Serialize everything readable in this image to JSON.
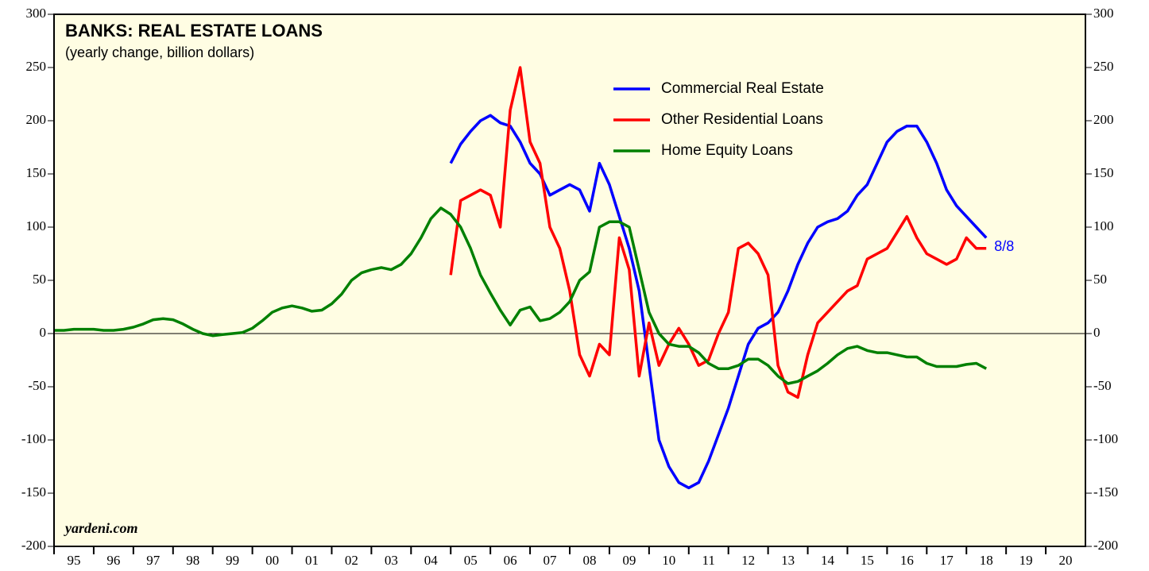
{
  "chart_data": {
    "type": "line",
    "title": "BANKS: REAL ESTATE LOANS",
    "subtitle": "(yearly change, billion dollars)",
    "source": "yardeni.com",
    "annotation": "8/8",
    "x": [
      1995,
      1995.25,
      1995.5,
      1995.75,
      1996,
      1996.25,
      1996.5,
      1996.75,
      1997,
      1997.25,
      1997.5,
      1997.75,
      1998,
      1998.25,
      1998.5,
      1998.75,
      1999,
      1999.25,
      1999.5,
      1999.75,
      2000,
      2000.25,
      2000.5,
      2000.75,
      2001,
      2001.25,
      2001.5,
      2001.75,
      2002,
      2002.25,
      2002.5,
      2002.75,
      2003,
      2003.25,
      2003.5,
      2003.75,
      2004,
      2004.25,
      2004.5,
      2004.75,
      2005,
      2005.25,
      2005.5,
      2005.75,
      2006,
      2006.25,
      2006.5,
      2006.75,
      2007,
      2007.25,
      2007.5,
      2007.75,
      2008,
      2008.25,
      2008.5,
      2008.75,
      2009,
      2009.25,
      2009.5,
      2009.75,
      2010,
      2010.25,
      2010.5,
      2010.75,
      2011,
      2011.25,
      2011.5,
      2011.75,
      2012,
      2012.25,
      2012.5,
      2012.75,
      2013,
      2013.25,
      2013.5,
      2013.75,
      2014,
      2014.25,
      2014.5,
      2014.75,
      2015,
      2015.25,
      2015.5,
      2015.75,
      2016,
      2016.25,
      2016.5,
      2016.75,
      2017,
      2017.25,
      2017.5,
      2017.75,
      2018,
      2018.25,
      2018.5
    ],
    "series": [
      {
        "name": "Commercial Real Estate",
        "color": "#0000ff",
        "values": [
          null,
          null,
          null,
          null,
          null,
          null,
          null,
          null,
          null,
          null,
          null,
          null,
          null,
          null,
          null,
          null,
          null,
          null,
          null,
          null,
          null,
          null,
          null,
          null,
          null,
          null,
          null,
          null,
          null,
          null,
          null,
          null,
          null,
          null,
          null,
          null,
          null,
          null,
          null,
          null,
          160,
          178,
          190,
          200,
          205,
          198,
          195,
          180,
          160,
          150,
          130,
          135,
          140,
          135,
          115,
          160,
          140,
          110,
          80,
          40,
          -30,
          -100,
          -125,
          -140,
          -145,
          -140,
          -120,
          -95,
          -70,
          -40,
          -10,
          5,
          10,
          20,
          40,
          65,
          85,
          100,
          105,
          108,
          115,
          130,
          140,
          160,
          180,
          190,
          195,
          195,
          180,
          160,
          135,
          120,
          110,
          100,
          90
        ]
      },
      {
        "name": "Other Residential Loans",
        "color": "#ff0000",
        "values": [
          null,
          null,
          null,
          null,
          null,
          null,
          null,
          null,
          null,
          null,
          null,
          null,
          null,
          null,
          null,
          null,
          null,
          null,
          null,
          null,
          null,
          null,
          null,
          null,
          null,
          null,
          null,
          null,
          null,
          null,
          null,
          null,
          null,
          null,
          null,
          null,
          null,
          null,
          null,
          null,
          55,
          125,
          130,
          135,
          130,
          100,
          210,
          250,
          180,
          160,
          100,
          80,
          40,
          -20,
          -40,
          -10,
          -20,
          90,
          60,
          -40,
          10,
          -30,
          -10,
          5,
          -10,
          -30,
          -25,
          0,
          20,
          80,
          85,
          75,
          55,
          -30,
          -55,
          -60,
          -20,
          10,
          20,
          30,
          40,
          45,
          70,
          75,
          80,
          95,
          110,
          90,
          75,
          70,
          65,
          70,
          90,
          80,
          80
        ]
      },
      {
        "name": "Home Equity Loans",
        "color": "#008000",
        "values": [
          3,
          3,
          4,
          4,
          4,
          3,
          3,
          4,
          6,
          9,
          13,
          14,
          13,
          9,
          4,
          0,
          -2,
          -1,
          0,
          1,
          5,
          12,
          20,
          24,
          26,
          24,
          21,
          22,
          28,
          37,
          50,
          57,
          60,
          62,
          60,
          65,
          75,
          90,
          108,
          118,
          112,
          100,
          80,
          55,
          38,
          22,
          8,
          22,
          25,
          12,
          14,
          20,
          30,
          50,
          58,
          100,
          105,
          105,
          100,
          60,
          20,
          0,
          -10,
          -12,
          -12,
          -18,
          -28,
          -33,
          -33,
          -30,
          -24,
          -24,
          -30,
          -40,
          -47,
          -45,
          -40,
          -35,
          -28,
          -20,
          -14,
          -12,
          -16,
          -18,
          -18,
          -20,
          -22,
          -22,
          -28,
          -31,
          -31,
          -31,
          -29,
          -28,
          -33
        ]
      }
    ],
    "xlim": [
      1995,
      2021
    ],
    "xticks": [
      {
        "value": 1995,
        "label": "95"
      },
      {
        "value": 1996,
        "label": "96"
      },
      {
        "value": 1997,
        "label": "97"
      },
      {
        "value": 1998,
        "label": "98"
      },
      {
        "value": 1999,
        "label": "99"
      },
      {
        "value": 2000,
        "label": "00"
      },
      {
        "value": 2001,
        "label": "01"
      },
      {
        "value": 2002,
        "label": "02"
      },
      {
        "value": 2003,
        "label": "03"
      },
      {
        "value": 2004,
        "label": "04"
      },
      {
        "value": 2005,
        "label": "05"
      },
      {
        "value": 2006,
        "label": "06"
      },
      {
        "value": 2007,
        "label": "07"
      },
      {
        "value": 2008,
        "label": "08"
      },
      {
        "value": 2009,
        "label": "09"
      },
      {
        "value": 2010,
        "label": "10"
      },
      {
        "value": 2011,
        "label": "11"
      },
      {
        "value": 2012,
        "label": "12"
      },
      {
        "value": 2013,
        "label": "13"
      },
      {
        "value": 2014,
        "label": "14"
      },
      {
        "value": 2015,
        "label": "15"
      },
      {
        "value": 2016,
        "label": "16"
      },
      {
        "value": 2017,
        "label": "17"
      },
      {
        "value": 2018,
        "label": "18"
      },
      {
        "value": 2019,
        "label": "19"
      },
      {
        "value": 2020,
        "label": "20"
      }
    ],
    "ylim": [
      -200,
      300
    ],
    "yticks": [
      -200,
      -150,
      -100,
      -50,
      0,
      50,
      100,
      150,
      200,
      250,
      300
    ],
    "background": "#fffde3"
  }
}
